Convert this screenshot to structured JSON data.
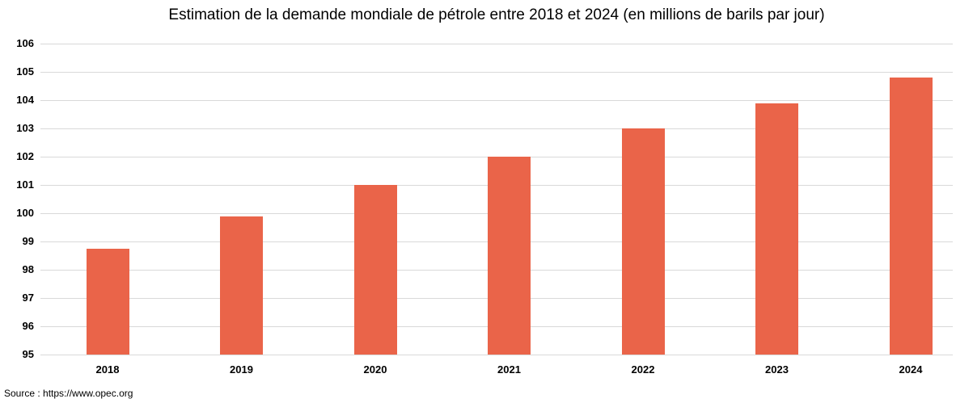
{
  "chart_data": {
    "type": "bar",
    "title": "Estimation de la demande mondiale de pétrole entre 2018 et 2024 (en millions de barils par jour)",
    "categories": [
      "2018",
      "2019",
      "2020",
      "2021",
      "2022",
      "2023",
      "2024"
    ],
    "values": [
      98.75,
      99.9,
      101,
      102,
      103,
      103.9,
      104.8
    ],
    "ylabel": "",
    "xlabel": "",
    "unit": "millions de barils par jour",
    "ylim": [
      95,
      106
    ],
    "yticks": [
      95,
      96,
      97,
      98,
      99,
      100,
      101,
      102,
      103,
      104,
      105,
      106
    ],
    "grid": true,
    "legend": false,
    "bar_color": "#EA6449",
    "gridline_color": "#D9D9D9",
    "text_color": "#000000"
  },
  "source": {
    "label": "Source : https://www.opec.org"
  }
}
